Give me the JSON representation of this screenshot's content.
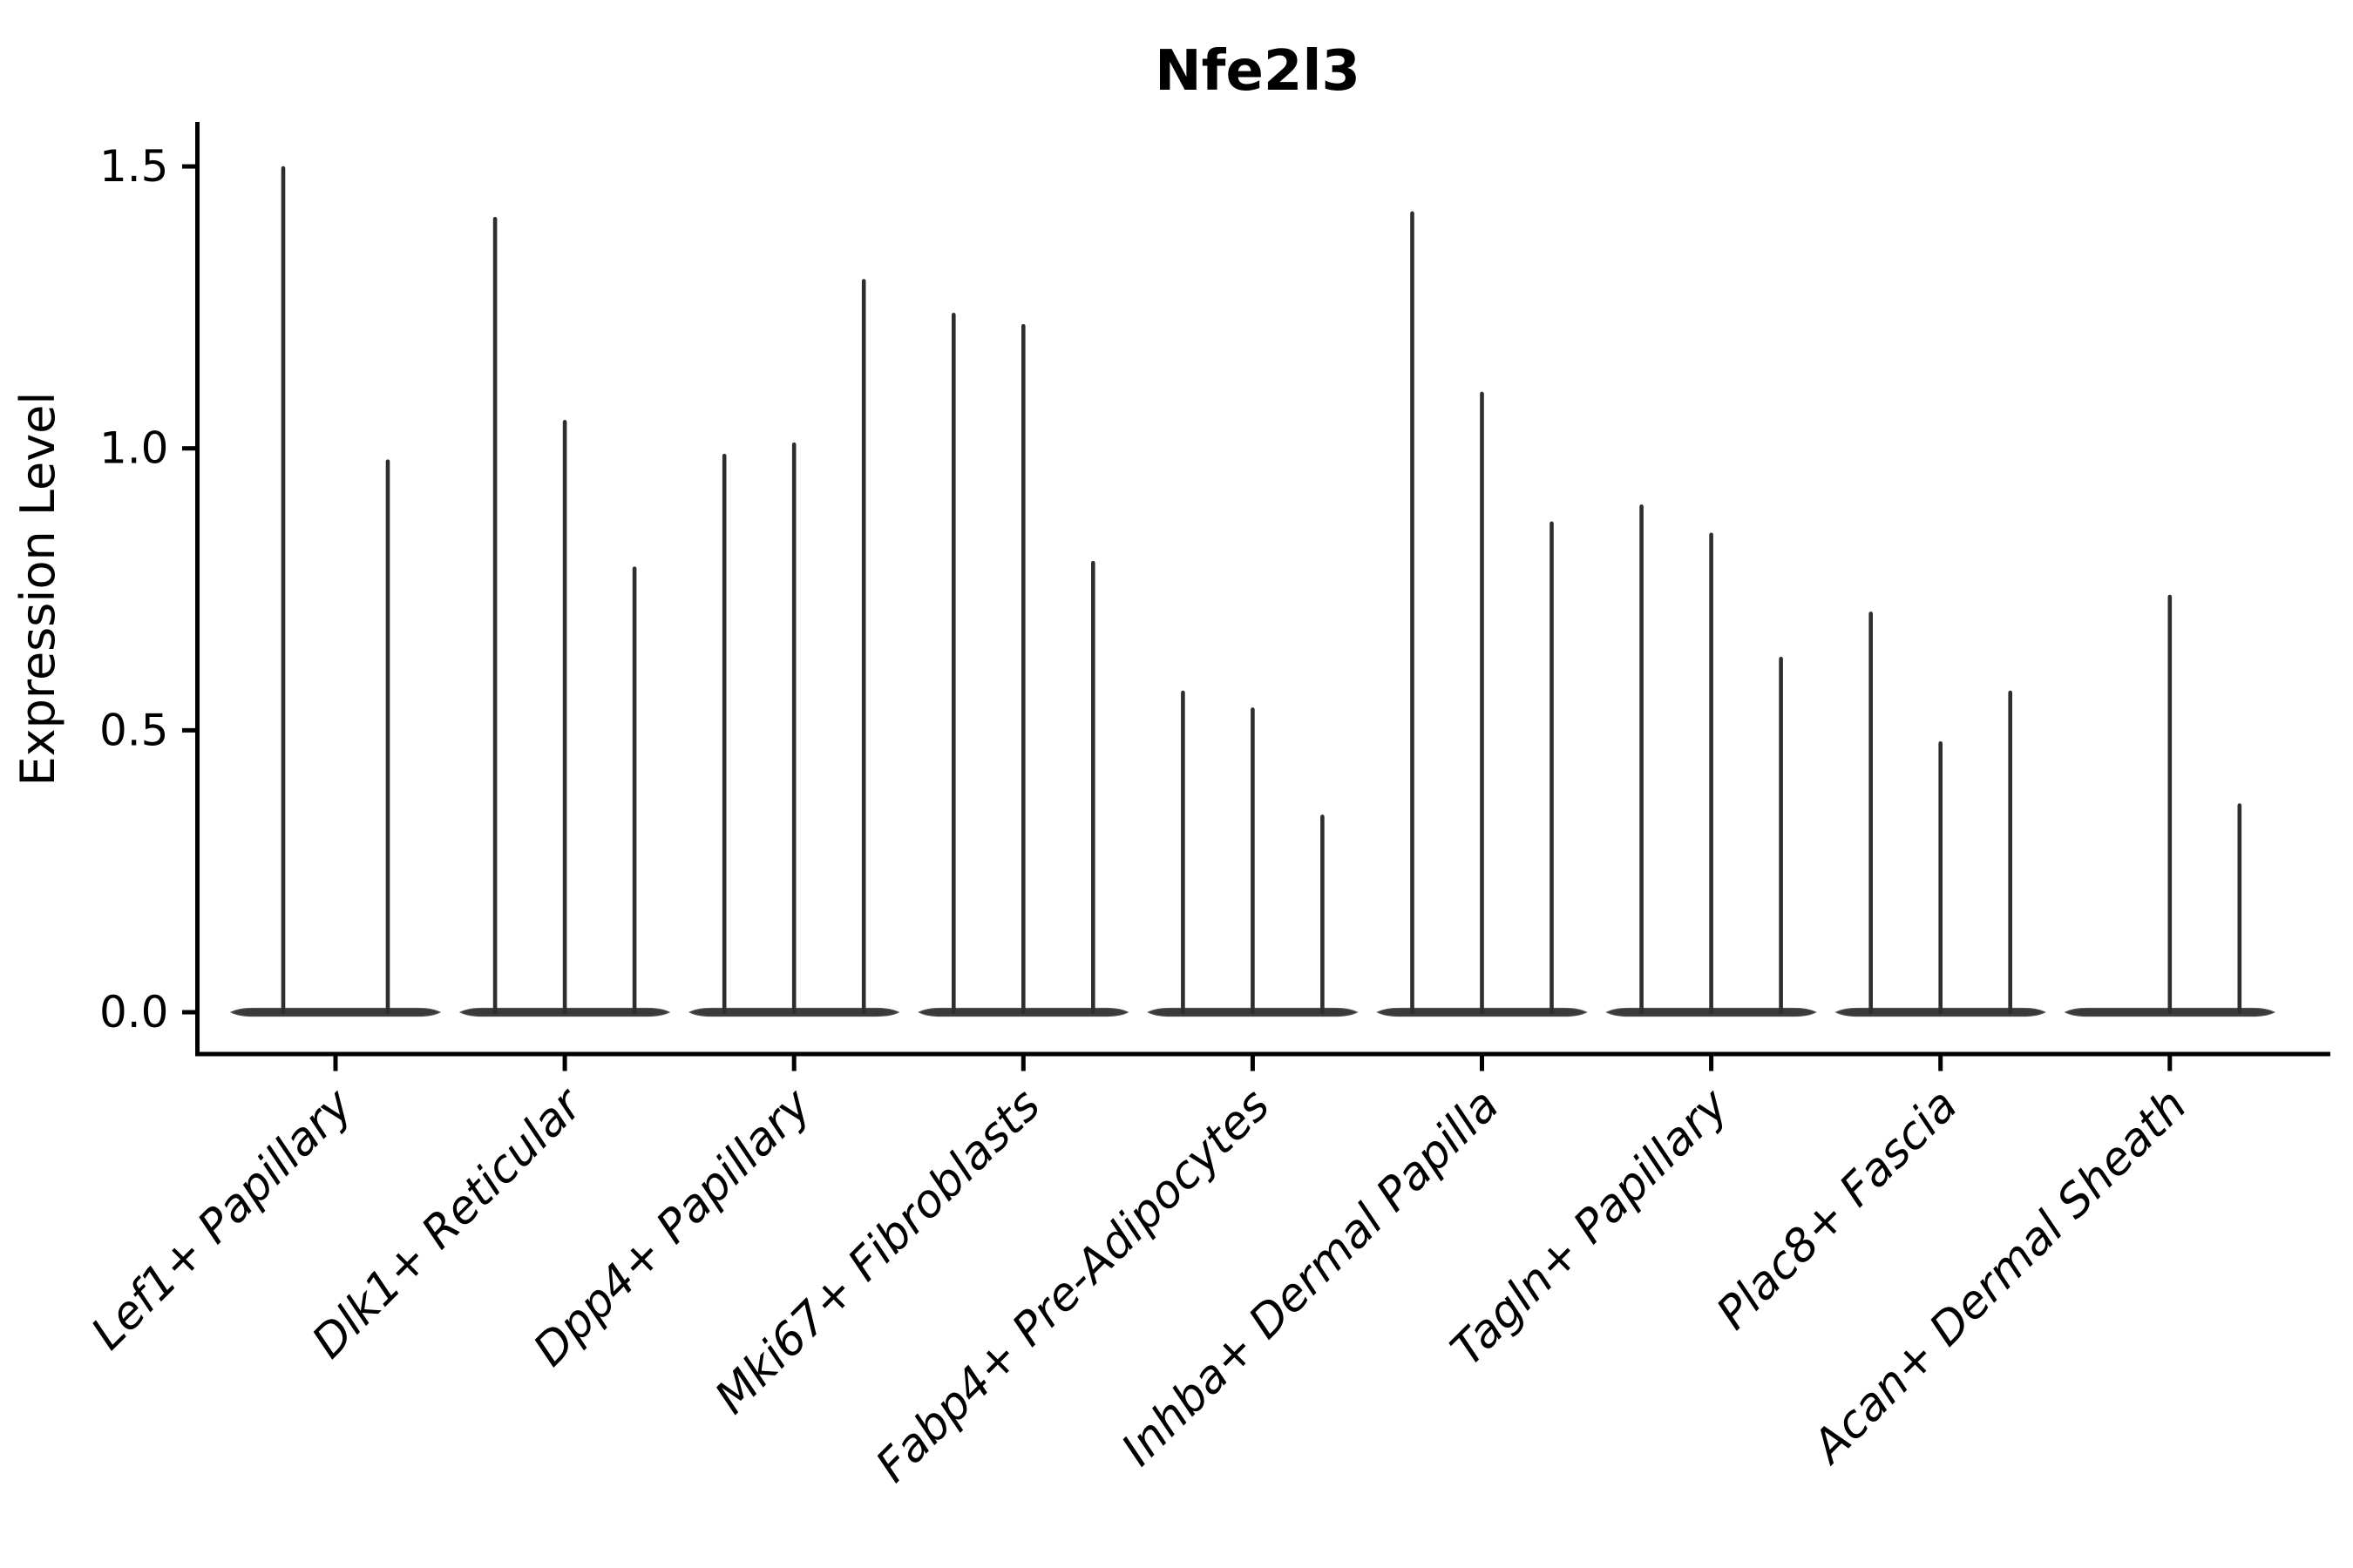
{
  "title": "Nfe2l3",
  "ylabel": "Expression Level",
  "chart_data": {
    "type": "violin",
    "title": "Nfe2l3",
    "xlabel": "",
    "ylabel": "Expression Level",
    "yticks": [
      0.0,
      0.5,
      1.0,
      1.5
    ],
    "ytick_labels": [
      "0.0",
      "0.5",
      "1.0",
      "1.5"
    ],
    "ylim": [
      -0.07,
      1.58
    ],
    "grid": false,
    "legend": "none",
    "description": "Violin plot of Nfe2l3 expression; each category holds narrow needle-like violins (flat dense base at 0 with a thin spike up to the max expression value).",
    "categories": [
      "Lef1+ Papillary",
      "Dlk1+ Reticular",
      "Dpp4+ Papillary",
      "Mki67+ Fibroblasts",
      "Fabp4+ Pre-Adipocytes",
      "Inhba+ Dermal Papilla",
      "Tagln+ Papillary",
      "Plac8+ Fascia",
      "Acan+ Dermal Sheath"
    ],
    "groups": [
      {
        "category": "Lef1+ Papillary",
        "violin_max_values": [
          1.5,
          0.98
        ]
      },
      {
        "category": "Dlk1+ Reticular",
        "violin_max_values": [
          1.41,
          1.05,
          0.79
        ]
      },
      {
        "category": "Dpp4+ Papillary",
        "violin_max_values": [
          0.99,
          1.01,
          1.3
        ]
      },
      {
        "category": "Mki67+ Fibroblasts",
        "violin_max_values": [
          1.24,
          1.22,
          0.8
        ]
      },
      {
        "category": "Fabp4+ Pre-Adipocytes",
        "violin_max_values": [
          0.57,
          0.54,
          0.35
        ]
      },
      {
        "category": "Inhba+ Dermal Papilla",
        "violin_max_values": [
          1.42,
          1.1,
          0.87
        ]
      },
      {
        "category": "Tagln+ Papillary",
        "violin_max_values": [
          0.9,
          0.85,
          0.63
        ]
      },
      {
        "category": "Plac8+ Fascia",
        "violin_max_values": [
          0.71,
          0.48,
          0.57
        ]
      },
      {
        "category": "Acan+ Dermal Sheath",
        "violin_max_values": [
          0.0,
          0.74,
          0.37
        ]
      }
    ],
    "colors": {
      "violin": "#2e2e2e",
      "violin_body": "#3a3a3a",
      "axis": "#000000",
      "text": "#000000",
      "background": "#ffffff"
    }
  }
}
